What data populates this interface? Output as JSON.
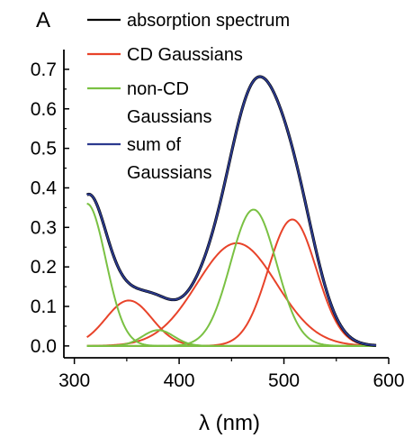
{
  "chart_data": {
    "type": "line",
    "panel_label": "A",
    "xlabel": "λ (nm)",
    "ylabel": "",
    "xlim": [
      290,
      600
    ],
    "ylim": [
      -0.03,
      0.75
    ],
    "x_ticks": [
      300,
      400,
      500,
      600
    ],
    "y_ticks": [
      0.0,
      0.1,
      0.2,
      0.3,
      0.4,
      0.5,
      0.6,
      0.7
    ],
    "x_range": [
      312,
      588
    ],
    "legend": [
      {
        "label": "absorption spectrum",
        "color": "#000000"
      },
      {
        "label": "CD Gaussians",
        "color": "#e8432a"
      },
      {
        "label": "non-CD Gaussians",
        "color": "#7ac143"
      },
      {
        "label": "sum of Gaussians",
        "color": "#2b3a8f"
      }
    ],
    "series": [
      {
        "name": "CD Gaussians",
        "color": "#e8432a",
        "gaussians": [
          {
            "center": 352,
            "amplitude": 0.115,
            "sigma": 22
          },
          {
            "center": 455,
            "amplitude": 0.26,
            "sigma": 38
          },
          {
            "center": 508,
            "amplitude": 0.32,
            "sigma": 23
          }
        ]
      },
      {
        "name": "non-CD Gaussians",
        "color": "#7ac143",
        "gaussians": [
          {
            "center": 312,
            "amplitude": 0.36,
            "sigma": 18
          },
          {
            "center": 380,
            "amplitude": 0.04,
            "sigma": 15
          },
          {
            "center": 471,
            "amplitude": 0.345,
            "sigma": 22
          },
          {
            "center": 600,
            "amplitude": 0.0,
            "sigma": 20
          }
        ]
      }
    ],
    "sum": {
      "name": "sum of Gaussians",
      "color": "#2b3a8f"
    },
    "absorption": {
      "name": "absorption spectrum",
      "color": "#000000"
    }
  }
}
